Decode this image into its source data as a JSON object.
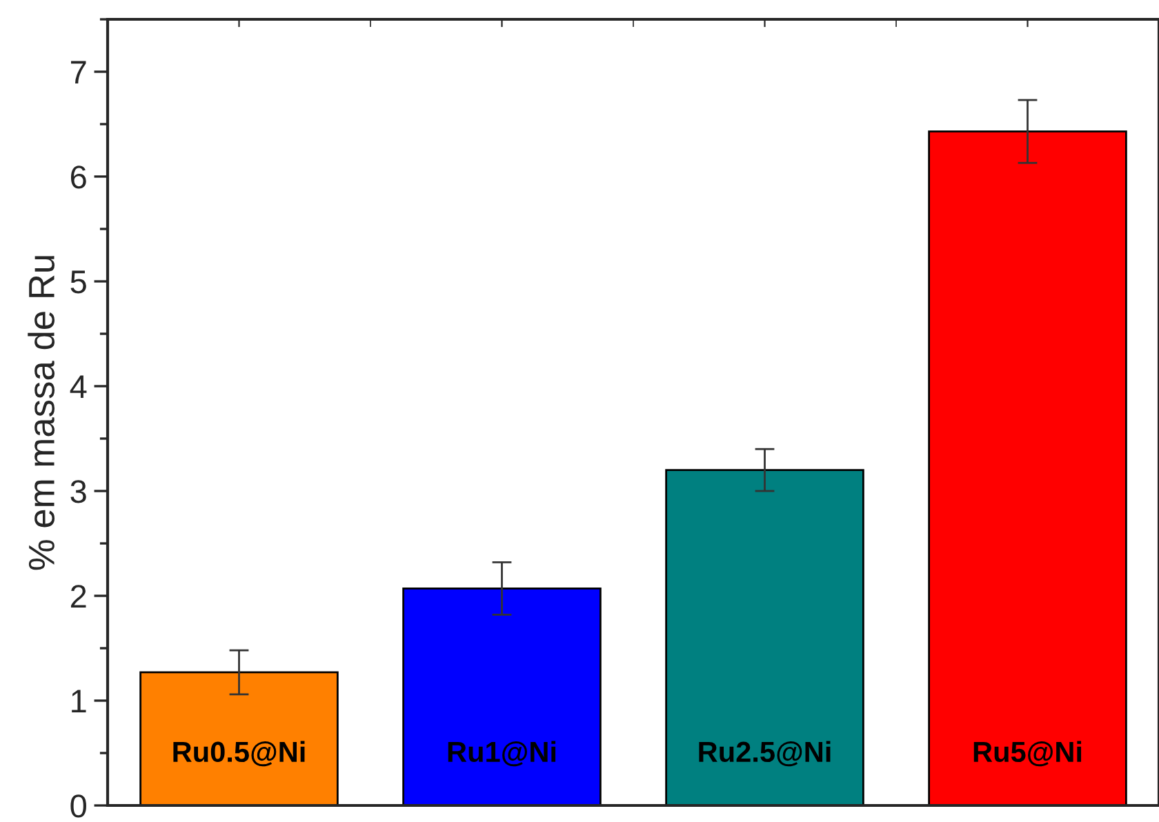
{
  "chart_data": {
    "type": "bar",
    "ylabel": "% em massa de Ru",
    "categories": [
      "Ru0.5@Ni",
      "Ru1@Ni",
      "Ru2.5@Ni",
      "Ru5@Ni"
    ],
    "values": [
      1.27,
      2.07,
      3.2,
      6.43
    ],
    "errors": [
      0.21,
      0.25,
      0.2,
      0.3
    ],
    "colors": [
      "#ff8000",
      "#0000ff",
      "#008080",
      "#ff0000"
    ],
    "ylim": [
      0,
      7.5
    ],
    "yticks": [
      0,
      1,
      2,
      3,
      4,
      5,
      6,
      7
    ],
    "grid": false,
    "legend": false
  }
}
